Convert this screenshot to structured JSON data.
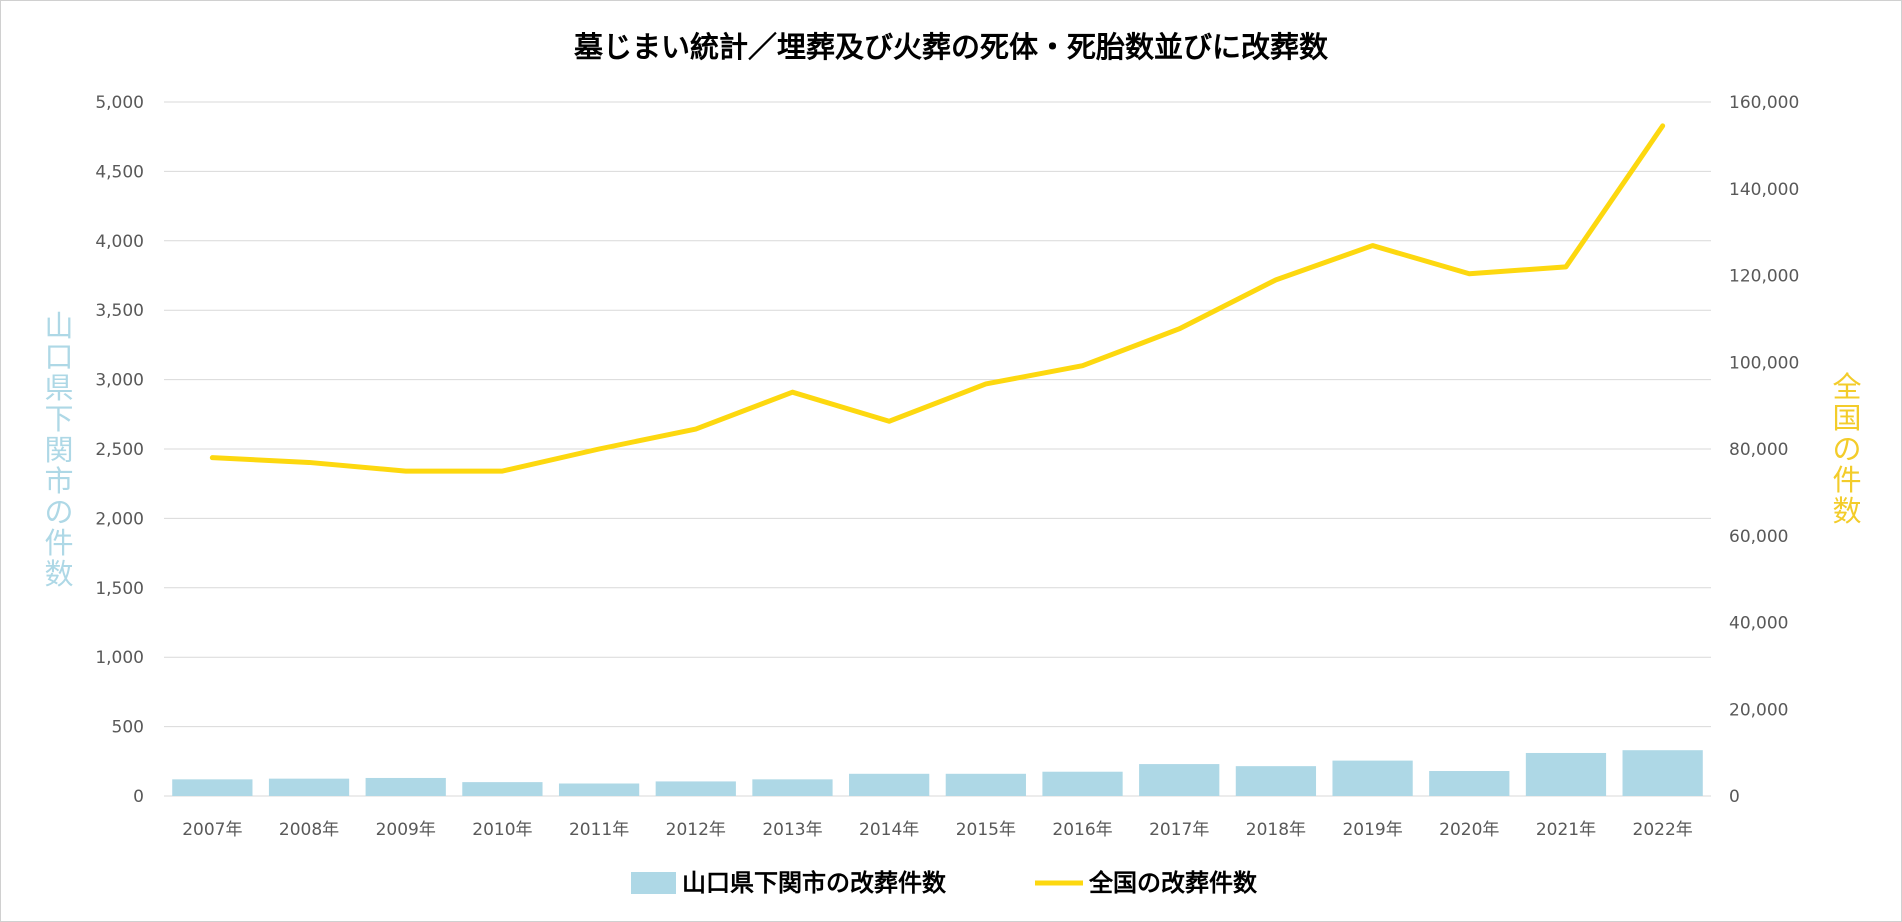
{
  "colors": {
    "bar": "#aed8e6",
    "line": "#fdd80f",
    "grid": "#d9d9d9",
    "tick_text": "#595959",
    "left_axis_title": "#aed8e6",
    "right_axis_title": "#f3cc2a"
  },
  "chart_data": {
    "type": "bar",
    "title": "墓じまい統計／埋葬及び火葬の死体・死胎数並びに改葬数",
    "categories": [
      "2007年",
      "2008年",
      "2009年",
      "2010年",
      "2011年",
      "2012年",
      "2013年",
      "2014年",
      "2015年",
      "2016年",
      "2017年",
      "2018年",
      "2019年",
      "2020年",
      "2021年",
      "2022年"
    ],
    "y_ticks": [
      "0",
      "500",
      "1,000",
      "1,500",
      "2,000",
      "2,500",
      "3,000",
      "3,500",
      "4,000",
      "4,500",
      "5,000"
    ],
    "y2_ticks": [
      "0",
      "20,000",
      "40,000",
      "60,000",
      "80,000",
      "100,000",
      "120,000",
      "140,000",
      "160,000"
    ],
    "ylabel": "山口県下関市の件数",
    "y2label": "全国の件数",
    "ylim": [
      0,
      5000
    ],
    "y2lim": [
      0,
      160000
    ],
    "grid": true,
    "legend_position": "bottom",
    "series": [
      {
        "name": "山口県下関市の改葬件数",
        "type": "bar",
        "axis": "left",
        "values": [
          120,
          125,
          130,
          100,
          90,
          105,
          120,
          160,
          160,
          175,
          230,
          215,
          255,
          180,
          310,
          330
        ]
      },
      {
        "name": "全国の改葬件数",
        "type": "line",
        "axis": "right",
        "values": [
          78000,
          76900,
          74900,
          74900,
          80000,
          84600,
          93100,
          86400,
          95000,
          99200,
          107700,
          119000,
          126900,
          120400,
          122000,
          154500
        ]
      }
    ]
  }
}
